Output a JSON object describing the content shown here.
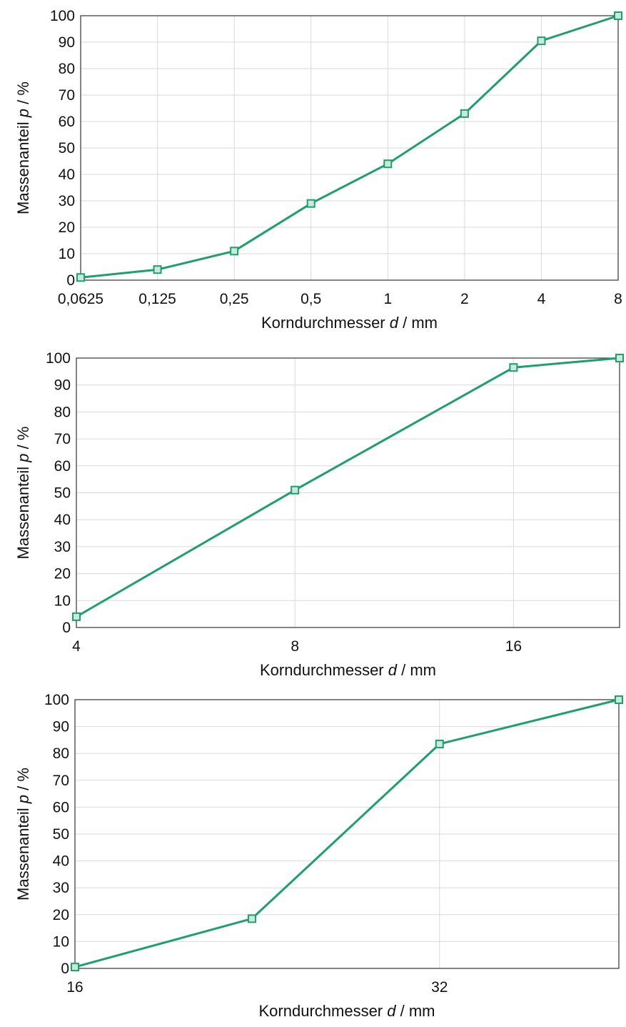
{
  "colors": {
    "series": "#1f9e6e",
    "marker_fill": "#c9ead8",
    "grid": "#d9d9d9",
    "frame": "#333333"
  },
  "chart_data": [
    {
      "type": "line",
      "x_scale": "log2",
      "x": [
        0.0625,
        0.125,
        0.25,
        0.5,
        1,
        2,
        4,
        8
      ],
      "xlim": [
        0.0625,
        8
      ],
      "xticks": [
        "0,0625",
        "0,125",
        "0,25",
        "0,5",
        "1",
        "2",
        "4",
        "8"
      ],
      "series": [
        {
          "values": [
            1,
            4,
            11,
            29,
            44,
            63,
            90.5,
            100
          ]
        }
      ],
      "ylim": [
        0,
        100
      ],
      "yticks": [
        "0",
        "10",
        "20",
        "30",
        "40",
        "50",
        "60",
        "70",
        "80",
        "90",
        "100"
      ],
      "xlabel_text": "Korndurchmesser",
      "xlabel_var": "d",
      "xlabel_unit": " / mm",
      "ylabel_text": "Massenanteil",
      "ylabel_var": "p",
      "ylabel_unit": " / %",
      "grid": true
    },
    {
      "type": "line",
      "x_scale": "log2",
      "x": [
        4,
        8,
        16,
        22.4
      ],
      "xlim": [
        4,
        22.4
      ],
      "xticks": [
        "4",
        "8",
        "16"
      ],
      "xtick_values": [
        4,
        8,
        16
      ],
      "series": [
        {
          "values": [
            4,
            51,
            96.5,
            100
          ]
        }
      ],
      "ylim": [
        0,
        100
      ],
      "yticks": [
        "0",
        "10",
        "20",
        "30",
        "40",
        "50",
        "60",
        "70",
        "80",
        "90",
        "100"
      ],
      "xlabel_text": "Korndurchmesser",
      "xlabel_var": "d",
      "xlabel_unit": " / mm",
      "ylabel_text": "Massenanteil",
      "ylabel_var": "p",
      "ylabel_unit": " / %",
      "grid": true
    },
    {
      "type": "line",
      "x_scale": "log2",
      "x": [
        16,
        22.4,
        32,
        45
      ],
      "xlim": [
        16,
        45
      ],
      "xticks": [
        "16",
        "32"
      ],
      "xtick_values": [
        16,
        32
      ],
      "series": [
        {
          "values": [
            0.5,
            18.5,
            83.5,
            100
          ]
        }
      ],
      "ylim": [
        0,
        100
      ],
      "yticks": [
        "0",
        "10",
        "20",
        "30",
        "40",
        "50",
        "60",
        "70",
        "80",
        "90",
        "100"
      ],
      "xlabel_text": "Korndurchmesser",
      "xlabel_var": "d",
      "xlabel_unit": " / mm",
      "ylabel_text": "Massenanteil",
      "ylabel_var": "p",
      "ylabel_unit": " / %",
      "grid": true
    }
  ]
}
